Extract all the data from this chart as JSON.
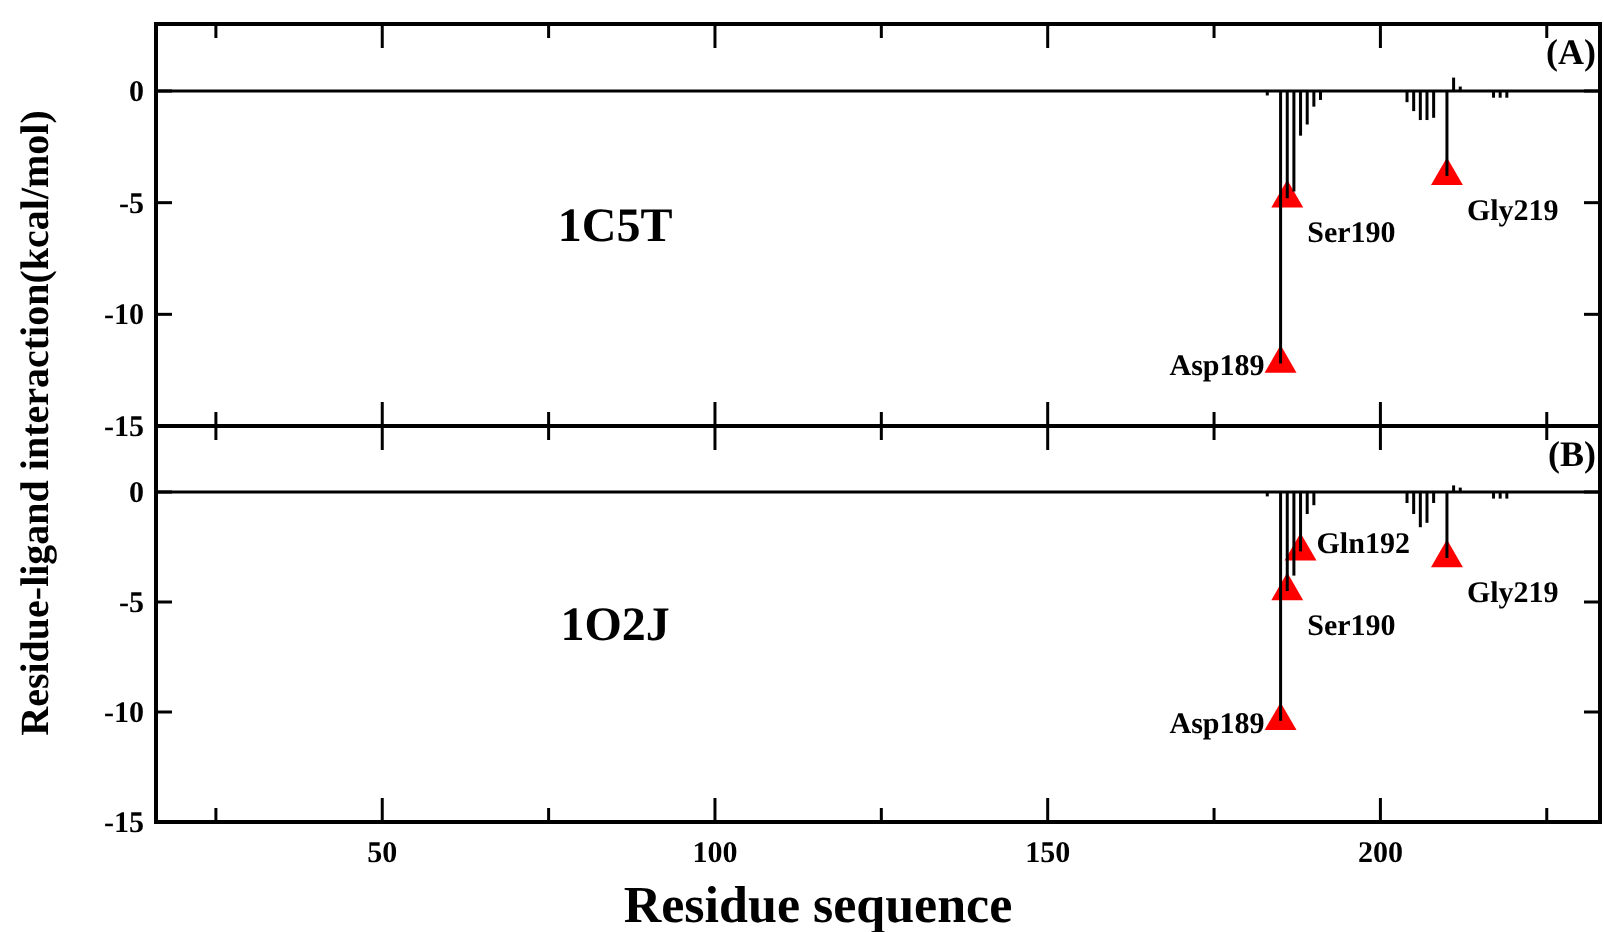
{
  "chart_data": [
    {
      "type": "bar",
      "ylabel": "Residue-ligand interaction(kcal/mol)",
      "annotations": [
        "(A)",
        "1C5T",
        {
          "text": "Asp189",
          "x": 185,
          "y": -12.2
        },
        {
          "text": "Ser190",
          "x": 186,
          "y": -4.8
        },
        {
          "text": "Gly219",
          "x": 210,
          "y": -3.8
        }
      ],
      "x": [
        183,
        185,
        186,
        187,
        188,
        189,
        190,
        191,
        204,
        205,
        206,
        207,
        208,
        210,
        211,
        212,
        217,
        218,
        219
      ],
      "series": [
        {
          "color": "#000000",
          "values": [
            -0.2,
            -12.2,
            -4.8,
            -4.5,
            -2.0,
            -1.5,
            -0.7,
            -0.4,
            -0.5,
            -0.9,
            -1.3,
            -1.3,
            -1.2,
            -3.8,
            0.6,
            0.2,
            -0.3,
            -0.3,
            -0.3
          ]
        },
        {
          "type": "scatter",
          "marker": "triangle",
          "color": "#ff0000",
          "x": [
            185,
            186,
            210
          ],
          "values": [
            -12.2,
            -4.8,
            -3.8
          ]
        }
      ],
      "xlim": [
        16,
        233
      ],
      "xticks": [
        {
          "value": 25,
          "label": null
        },
        {
          "value": 50,
          "label": null
        },
        {
          "value": 75,
          "label": null
        },
        {
          "value": 100,
          "label": null
        },
        {
          "value": 125,
          "label": null
        },
        {
          "value": 150,
          "label": null
        },
        {
          "value": 175,
          "label": null
        },
        {
          "value": 200,
          "label": null
        },
        {
          "value": 225,
          "label": null
        }
      ],
      "ylim": [
        -15,
        3
      ],
      "yticks": [
        0,
        -5,
        -10,
        -15
      ],
      "tick_labels": "y",
      "ref_lines": [
        {
          "axis": "y",
          "value": 0,
          "color": "#000000"
        }
      ]
    },
    {
      "type": "bar",
      "xlabel": "Residue sequence",
      "annotations": [
        "(B)",
        "1O2J",
        {
          "text": "Asp189",
          "x": 185,
          "y": -10.4
        },
        {
          "text": "Ser190",
          "x": 186,
          "y": -4.5
        },
        {
          "text": "Gln192",
          "x": 188,
          "y": -2.7
        },
        {
          "text": "Gly219",
          "x": 210,
          "y": -3.0
        }
      ],
      "x": [
        183,
        185,
        186,
        187,
        188,
        189,
        190,
        204,
        205,
        206,
        207,
        208,
        210,
        211,
        212,
        217,
        218,
        219
      ],
      "series": [
        {
          "color": "#000000",
          "values": [
            -0.2,
            -10.4,
            -4.5,
            -3.8,
            -2.7,
            -1.0,
            -0.6,
            -0.5,
            -1.0,
            -1.6,
            -1.4,
            -0.5,
            -3.0,
            0.3,
            0.2,
            -0.3,
            -0.3,
            -0.3
          ]
        },
        {
          "type": "scatter",
          "marker": "triangle",
          "color": "#ff0000",
          "x": [
            185,
            186,
            188,
            210
          ],
          "values": [
            -10.4,
            -4.5,
            -2.7,
            -3.0
          ]
        }
      ],
      "xlim": [
        16,
        233
      ],
      "xticks": [
        {
          "value": 25,
          "label": null
        },
        50,
        {
          "value": 75,
          "label": null
        },
        100,
        {
          "value": 125,
          "label": null
        },
        150,
        {
          "value": 175,
          "label": null
        },
        200,
        {
          "value": 225,
          "label": null
        }
      ],
      "ylim": [
        -15,
        3
      ],
      "yticks": [
        0,
        -5,
        -10,
        -15
      ],
      "ref_lines": [
        {
          "axis": "y",
          "value": 0,
          "color": "#000000"
        }
      ]
    }
  ]
}
